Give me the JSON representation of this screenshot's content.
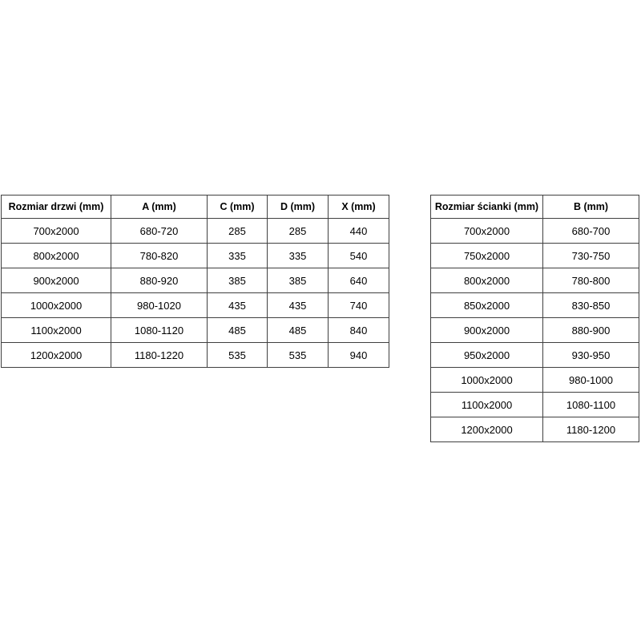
{
  "page": {
    "background_color": "#ffffff",
    "border_color": "#404040",
    "text_color": "#000000"
  },
  "tables": [
    {
      "name": "doors-dimensions-table",
      "headers": [
        "Rozmiar drzwi (mm)",
        "A (mm)",
        "C (mm)",
        "D (mm)",
        "X (mm)"
      ],
      "rows": [
        [
          "700x2000",
          "680-720",
          "285",
          "285",
          "440"
        ],
        [
          "800x2000",
          "780-820",
          "335",
          "335",
          "540"
        ],
        [
          "900x2000",
          "880-920",
          "385",
          "385",
          "640"
        ],
        [
          "1000x2000",
          "980-1020",
          "435",
          "435",
          "740"
        ],
        [
          "1100x2000",
          "1080-1120",
          "485",
          "485",
          "840"
        ],
        [
          "1200x2000",
          "1180-1220",
          "535",
          "535",
          "940"
        ]
      ]
    },
    {
      "name": "wall-dimensions-table",
      "headers": [
        "Rozmiar ścianki (mm)",
        "B (mm)"
      ],
      "rows": [
        [
          "700x2000",
          "680-700"
        ],
        [
          "750x2000",
          "730-750"
        ],
        [
          "800x2000",
          "780-800"
        ],
        [
          "850x2000",
          "830-850"
        ],
        [
          "900x2000",
          "880-900"
        ],
        [
          "950x2000",
          "930-950"
        ],
        [
          "1000x2000",
          "980-1000"
        ],
        [
          "1100x2000",
          "1080-1100"
        ],
        [
          "1200x2000",
          "1180-1200"
        ]
      ]
    }
  ]
}
